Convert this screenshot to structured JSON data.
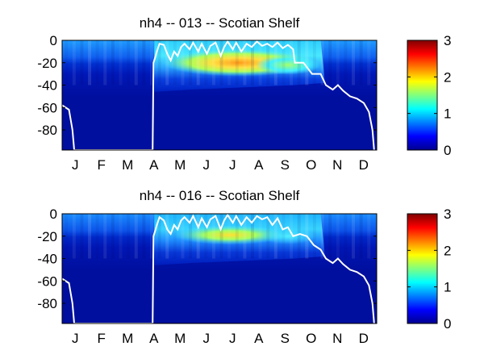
{
  "chart_data": [
    {
      "type": "heatmap",
      "title": "nh4 -- 013 -- Scotian Shelf",
      "x_tick_labels": [
        "J",
        "F",
        "M",
        "A",
        "M",
        "J",
        "J",
        "A",
        "S",
        "O",
        "N",
        "D"
      ],
      "y_tick_labels": [
        "0",
        "-20",
        "-40",
        "-60",
        "-80"
      ],
      "y_ticks": [
        0,
        -20,
        -40,
        -60,
        -80
      ],
      "xlim": [
        0,
        365
      ],
      "ylim": [
        -98,
        0
      ],
      "colorbar": {
        "ticks": [
          0,
          1,
          2,
          3
        ],
        "tick_labels": [
          "0",
          "1",
          "2",
          "3"
        ],
        "range": [
          0,
          3
        ],
        "colormap": "jet"
      },
      "white_line_depth": [
        [
          0,
          -58
        ],
        [
          8,
          -62
        ],
        [
          12,
          -80
        ],
        [
          14,
          -98
        ],
        [
          105,
          -98
        ],
        [
          106,
          -20
        ],
        [
          110,
          -10
        ],
        [
          113,
          -3
        ],
        [
          118,
          -4
        ],
        [
          122,
          -12
        ],
        [
          126,
          -18
        ],
        [
          130,
          -10
        ],
        [
          134,
          -14
        ],
        [
          138,
          -6
        ],
        [
          142,
          -3
        ],
        [
          148,
          -8
        ],
        [
          152,
          -2
        ],
        [
          158,
          -10
        ],
        [
          162,
          -3
        ],
        [
          168,
          -12
        ],
        [
          172,
          -5
        ],
        [
          178,
          -2
        ],
        [
          184,
          -14
        ],
        [
          188,
          -6
        ],
        [
          192,
          -1
        ],
        [
          198,
          -8
        ],
        [
          202,
          -2
        ],
        [
          208,
          -10
        ],
        [
          214,
          -3
        ],
        [
          220,
          -6
        ],
        [
          226,
          -1
        ],
        [
          232,
          -5
        ],
        [
          238,
          -3
        ],
        [
          244,
          -6
        ],
        [
          250,
          -2
        ],
        [
          256,
          -7
        ],
        [
          262,
          -4
        ],
        [
          268,
          -8
        ],
        [
          270,
          -20
        ],
        [
          280,
          -20
        ],
        [
          290,
          -30
        ],
        [
          300,
          -30
        ],
        [
          306,
          -40
        ],
        [
          314,
          -44
        ],
        [
          320,
          -40
        ],
        [
          326,
          -45
        ],
        [
          334,
          -50
        ],
        [
          342,
          -52
        ],
        [
          350,
          -56
        ],
        [
          356,
          -64
        ],
        [
          360,
          -80
        ],
        [
          362,
          -98
        ]
      ]
    },
    {
      "type": "heatmap",
      "title": "nh4 -- 016 -- Scotian Shelf",
      "x_tick_labels": [
        "J",
        "F",
        "M",
        "A",
        "M",
        "J",
        "J",
        "A",
        "S",
        "O",
        "N",
        "D"
      ],
      "y_tick_labels": [
        "0",
        "-20",
        "-40",
        "-60",
        "-80"
      ],
      "y_ticks": [
        0,
        -20,
        -40,
        -60,
        -80
      ],
      "xlim": [
        0,
        365
      ],
      "ylim": [
        -98,
        0
      ],
      "colorbar": {
        "ticks": [
          0,
          1,
          2,
          3
        ],
        "tick_labels": [
          "0",
          "1",
          "2",
          "3"
        ],
        "range": [
          0,
          3
        ],
        "colormap": "jet"
      },
      "white_line_depth": [
        [
          0,
          -58
        ],
        [
          8,
          -62
        ],
        [
          12,
          -80
        ],
        [
          14,
          -98
        ],
        [
          105,
          -98
        ],
        [
          106,
          -20
        ],
        [
          110,
          -10
        ],
        [
          113,
          -3
        ],
        [
          118,
          -6
        ],
        [
          122,
          -14
        ],
        [
          126,
          -18
        ],
        [
          130,
          -10
        ],
        [
          134,
          -14
        ],
        [
          138,
          -6
        ],
        [
          142,
          -3
        ],
        [
          148,
          -8
        ],
        [
          152,
          -2
        ],
        [
          158,
          -12
        ],
        [
          162,
          -4
        ],
        [
          168,
          -12
        ],
        [
          172,
          -5
        ],
        [
          178,
          -2
        ],
        [
          184,
          -14
        ],
        [
          188,
          -6
        ],
        [
          192,
          -1
        ],
        [
          198,
          -8
        ],
        [
          202,
          -2
        ],
        [
          208,
          -10
        ],
        [
          214,
          -3
        ],
        [
          220,
          -8
        ],
        [
          226,
          -2
        ],
        [
          232,
          -5
        ],
        [
          238,
          -3
        ],
        [
          244,
          -10
        ],
        [
          250,
          -4
        ],
        [
          256,
          -14
        ],
        [
          262,
          -12
        ],
        [
          268,
          -20
        ],
        [
          276,
          -18
        ],
        [
          284,
          -20
        ],
        [
          292,
          -28
        ],
        [
          300,
          -32
        ],
        [
          306,
          -40
        ],
        [
          314,
          -44
        ],
        [
          320,
          -40
        ],
        [
          326,
          -45
        ],
        [
          334,
          -50
        ],
        [
          342,
          -52
        ],
        [
          350,
          -56
        ],
        [
          356,
          -64
        ],
        [
          360,
          -80
        ],
        [
          362,
          -98
        ]
      ]
    }
  ]
}
